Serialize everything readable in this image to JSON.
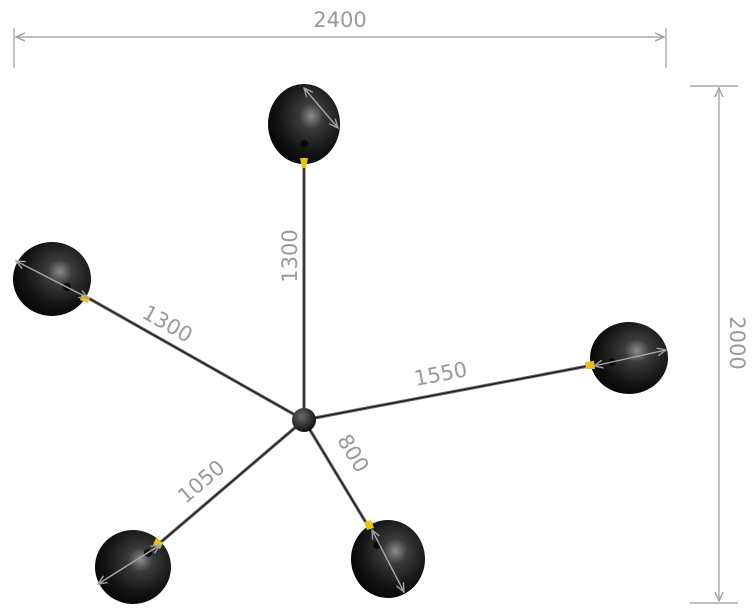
{
  "dimensions": {
    "overall_width": "2400",
    "overall_height": "2000",
    "arm_top": "1300",
    "arm_upper_left": "1300",
    "arm_right": "1550",
    "arm_lower_left": "1050",
    "arm_lower_right": "800"
  },
  "colors": {
    "globe": "#161616",
    "rod": "#4a4a4a",
    "connector": "#e8c21a",
    "dimension": "#a0a0a0"
  }
}
